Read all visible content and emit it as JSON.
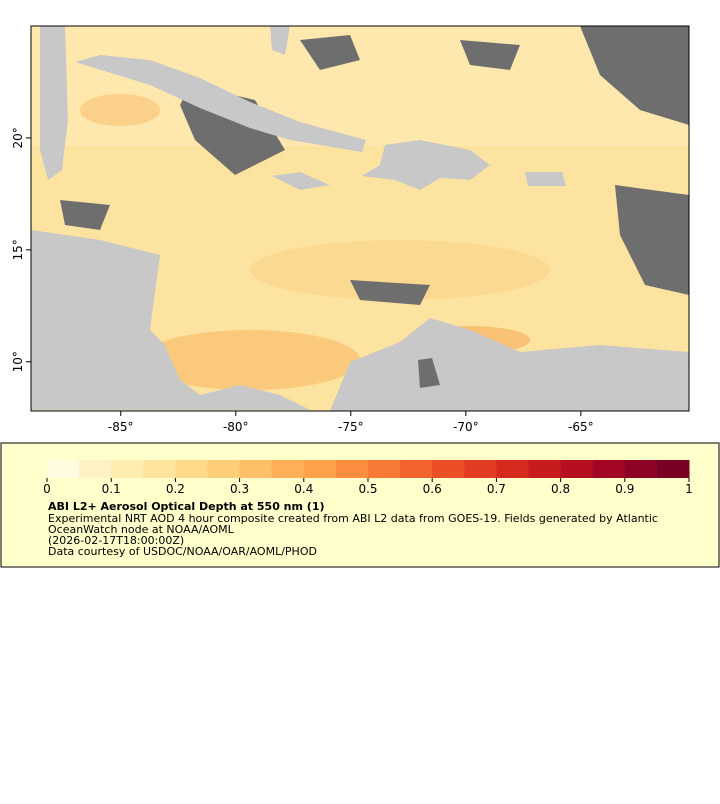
{
  "map": {
    "xlim": [
      -88.9,
      -60.3
    ],
    "ylim": [
      7.8,
      25
    ],
    "xticks": [
      {
        "value": -85,
        "label": "-85°"
      },
      {
        "value": -80,
        "label": "-80°"
      },
      {
        "value": -75,
        "label": "-75°"
      },
      {
        "value": -70,
        "label": "-70°"
      },
      {
        "value": -65,
        "label": "-65°"
      }
    ],
    "yticks": [
      {
        "value": 10,
        "label": "10°"
      },
      {
        "value": 15,
        "label": "15°"
      },
      {
        "value": 20,
        "label": "20°"
      }
    ]
  },
  "colorbar": {
    "lim": [
      0,
      1
    ],
    "ticks": [
      0,
      0.1,
      0.2,
      0.3,
      0.4,
      0.5,
      0.6,
      0.7,
      0.8,
      0.9,
      1
    ],
    "colors": [
      "#fffbe0",
      "#fff3c6",
      "#ffecb0",
      "#fee49c",
      "#fed98a",
      "#fecd78",
      "#febf66",
      "#feb056",
      "#fda24a",
      "#fb8e3e",
      "#f87a34",
      "#f3642c",
      "#ec4f26",
      "#e23c22",
      "#d62a1e",
      "#c81b1e",
      "#b60f22",
      "#a20624",
      "#8c0325",
      "#780024"
    ]
  },
  "legend": {
    "title": "ABI L2+ Aerosol Optical Depth at 550 nm (1)",
    "description": "Experimental NRT AOD 4 hour composite created from ABI L2 data from GOES-19. Fields generated by Atlantic",
    "description2": "OceanWatch node at NOAA/AOML",
    "time": "(2026-02-17T18:00:00Z)",
    "credit": "Data courtesy of USDOC/NOAA/OAR/AOML/PHOD"
  }
}
